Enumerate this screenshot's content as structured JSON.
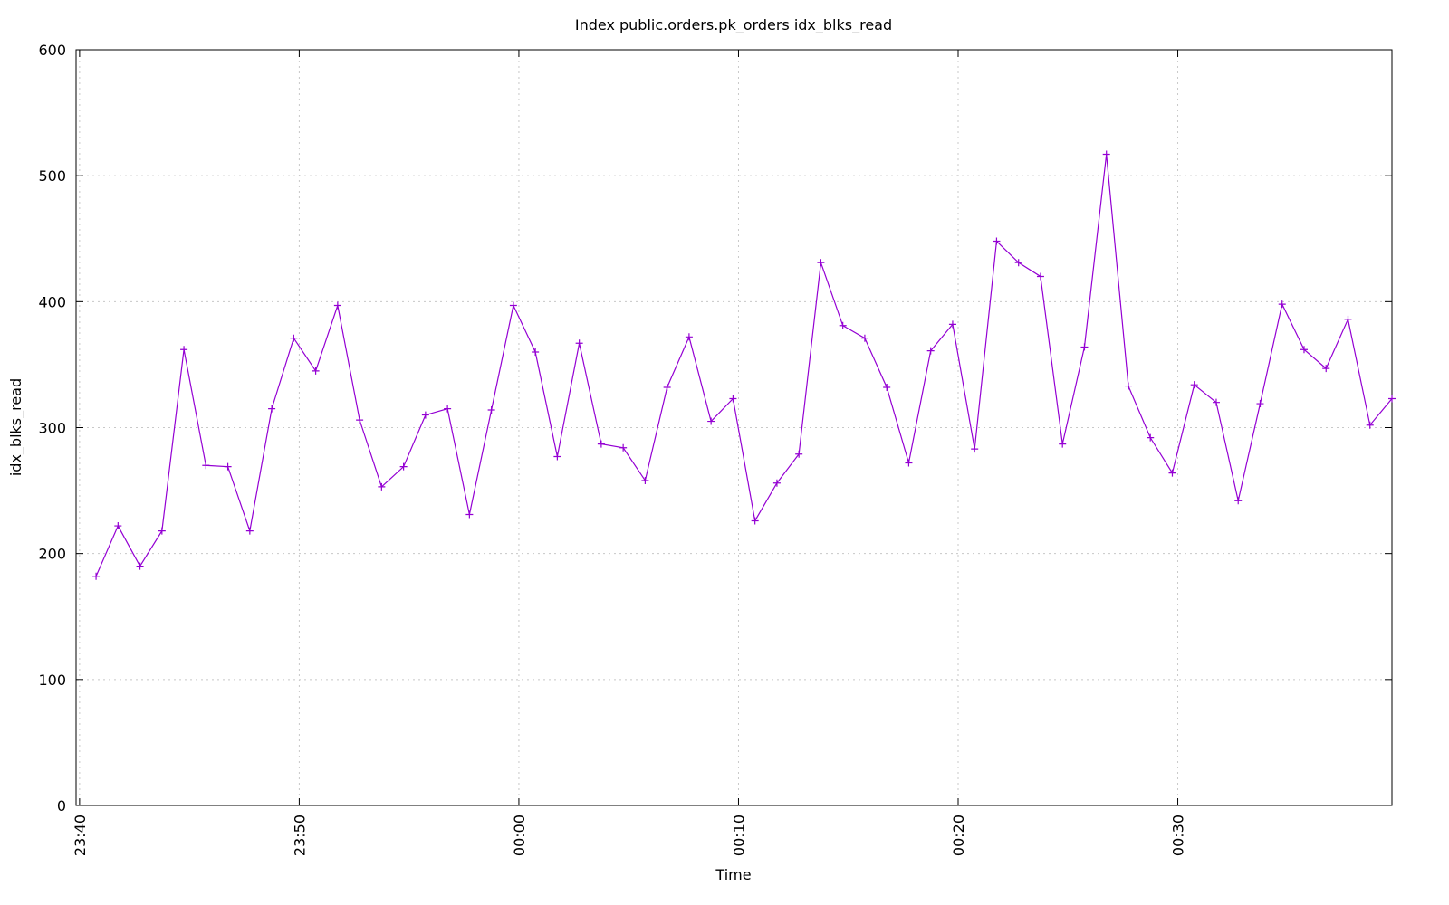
{
  "chart_data": {
    "type": "line",
    "title": "Index public.orders.pk_orders idx_blks_read",
    "x_label": "Time",
    "y_label": "idx_blks_read",
    "x": [
      0.75,
      1.75,
      2.75,
      3.75,
      4.75,
      5.75,
      6.75,
      7.75,
      8.75,
      9.75,
      10.75,
      11.75,
      12.75,
      13.75,
      14.75,
      15.75,
      16.75,
      17.75,
      18.75,
      19.75,
      20.75,
      21.75,
      22.75,
      23.75,
      24.75,
      25.75,
      26.75,
      27.75,
      28.75,
      29.75,
      30.75,
      31.75,
      32.75,
      33.75,
      34.75,
      35.75,
      36.75,
      37.75,
      38.75,
      39.75,
      40.75,
      41.75,
      42.75,
      43.75,
      44.75,
      45.75,
      46.75,
      47.75,
      48.75,
      49.75,
      50.75,
      51.75,
      52.75,
      53.75,
      54.75,
      55.75,
      56.75,
      57.75,
      58.75,
      59.75
    ],
    "series": [
      {
        "name": "idx_blks_read",
        "color": "#9400d3",
        "values": [
          182,
          222,
          190,
          218,
          362,
          270,
          269,
          218,
          315,
          371,
          345,
          397,
          306,
          253,
          269,
          310,
          315,
          231,
          314,
          397,
          360,
          277,
          367,
          287,
          284,
          258,
          332,
          372,
          305,
          323,
          226,
          256,
          279,
          431,
          381,
          371,
          332,
          272,
          361,
          382,
          283,
          448,
          431,
          420,
          287,
          364,
          517,
          333,
          292,
          264,
          334,
          320,
          242,
          319,
          398,
          362,
          347,
          386,
          302,
          323
        ]
      }
    ],
    "xlim": [
      -0.16,
      59.75
    ],
    "xticks": [
      {
        "value": 0,
        "label": "23:40"
      },
      {
        "value": 10,
        "label": "23:50"
      },
      {
        "value": 20,
        "label": "00:00"
      },
      {
        "value": 30,
        "label": "00:10"
      },
      {
        "value": 40,
        "label": "00:20"
      },
      {
        "value": 50,
        "label": "00:30"
      }
    ],
    "ylim": [
      0,
      600
    ],
    "yticks": [
      0,
      100,
      200,
      300,
      400,
      500,
      600
    ],
    "grid": true
  }
}
